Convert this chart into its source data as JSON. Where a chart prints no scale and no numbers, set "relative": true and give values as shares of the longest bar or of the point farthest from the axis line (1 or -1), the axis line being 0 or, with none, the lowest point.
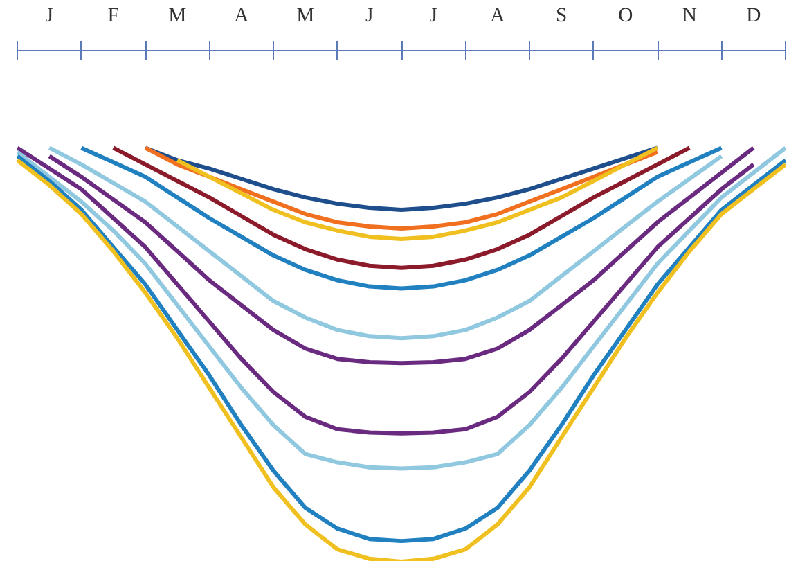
{
  "chart_data": {
    "type": "line",
    "relative": true,
    "grid": false,
    "tick_labels": "x",
    "line_style": "solid",
    "marker": "none",
    "categories": [
      null,
      "J",
      null,
      "F",
      null,
      "M",
      null,
      "A",
      null,
      "M",
      null,
      "J",
      null,
      "J",
      null,
      "A",
      null,
      "S",
      null,
      "O",
      null,
      "N",
      null,
      "D",
      null
    ],
    "series": [
      {
        "color": "#1f4e8c",
        "values": [
          null,
          null,
          null,
          null,
          1,
          0.97,
          0.95,
          0.925,
          0.9,
          0.88,
          0.865,
          0.855,
          0.85,
          0.855,
          0.865,
          0.88,
          0.9,
          0.925,
          0.95,
          0.975,
          1,
          null,
          null,
          null,
          null
        ]
      },
      {
        "color": "#f07020",
        "values": [
          null,
          null,
          null,
          null,
          1,
          0.96,
          0.93,
          0.9,
          0.87,
          0.84,
          0.82,
          0.81,
          0.805,
          0.81,
          0.82,
          0.84,
          0.87,
          0.9,
          0.93,
          0.96,
          0.99,
          null,
          null,
          null,
          null
        ]
      },
      {
        "color": "#f0c020",
        "values": [
          null,
          null,
          null,
          null,
          null,
          0.97,
          0.93,
          0.89,
          0.85,
          0.82,
          0.8,
          0.785,
          0.78,
          0.785,
          0.8,
          0.82,
          0.85,
          0.88,
          0.92,
          0.96,
          1,
          null,
          null,
          null,
          null
        ]
      },
      {
        "color": "#8b1a2a",
        "values": [
          null,
          null,
          null,
          1,
          0.96,
          0.92,
          0.88,
          0.835,
          0.79,
          0.755,
          0.73,
          0.715,
          0.71,
          0.715,
          0.73,
          0.755,
          0.79,
          0.835,
          0.88,
          0.92,
          0.96,
          1,
          null,
          null,
          null
        ]
      },
      {
        "color": "#2080c0",
        "values": [
          null,
          null,
          1,
          0.965,
          0.93,
          0.88,
          0.83,
          0.785,
          0.74,
          0.705,
          0.68,
          0.665,
          0.66,
          0.665,
          0.68,
          0.705,
          0.74,
          0.785,
          0.83,
          0.88,
          0.93,
          0.965,
          1,
          null,
          null
        ]
      },
      {
        "color": "#90c8e0",
        "values": [
          null,
          1,
          0.96,
          0.915,
          0.87,
          0.81,
          0.75,
          0.69,
          0.63,
          0.59,
          0.56,
          0.545,
          0.54,
          0.545,
          0.56,
          0.59,
          0.63,
          0.69,
          0.75,
          0.81,
          0.87,
          0.925,
          0.98,
          null,
          null
        ]
      },
      {
        "color": "#6a2a80",
        "values": [
          null,
          0.98,
          0.93,
          0.875,
          0.82,
          0.75,
          0.68,
          0.62,
          0.56,
          0.515,
          0.49,
          0.482,
          0.48,
          0.482,
          0.49,
          0.515,
          0.56,
          0.62,
          0.68,
          0.75,
          0.82,
          0.88,
          0.94,
          1,
          null
        ]
      },
      {
        "color": "#6a2a80",
        "values": [
          1,
          0.95,
          0.9,
          0.83,
          0.76,
          0.67,
          0.58,
          0.49,
          0.41,
          0.35,
          0.32,
          0.312,
          0.31,
          0.312,
          0.32,
          0.35,
          0.41,
          0.49,
          0.58,
          0.67,
          0.76,
          0.83,
          0.9,
          0.96,
          null
        ]
      },
      {
        "color": "#90c8e0",
        "values": [
          0.99,
          0.93,
          0.87,
          0.8,
          0.72,
          0.62,
          0.52,
          0.42,
          0.33,
          0.26,
          0.24,
          0.228,
          0.225,
          0.228,
          0.24,
          0.26,
          0.33,
          0.42,
          0.52,
          0.62,
          0.72,
          0.8,
          0.88,
          0.94,
          1
        ]
      },
      {
        "color": "#2080c0",
        "values": [
          0.98,
          0.92,
          0.85,
          0.76,
          0.67,
          0.56,
          0.45,
          0.33,
          0.22,
          0.13,
          0.08,
          0.055,
          0.05,
          0.055,
          0.08,
          0.13,
          0.22,
          0.33,
          0.45,
          0.56,
          0.67,
          0.76,
          0.85,
          0.91,
          0.97
        ]
      },
      {
        "color": "#f0c020",
        "values": [
          0.97,
          0.91,
          0.84,
          0.75,
          0.65,
          0.54,
          0.42,
          0.3,
          0.18,
          0.09,
          0.03,
          0.007,
          0,
          0.007,
          0.03,
          0.09,
          0.18,
          0.3,
          0.42,
          0.54,
          0.65,
          0.75,
          0.84,
          0.9,
          0.96
        ]
      }
    ]
  }
}
